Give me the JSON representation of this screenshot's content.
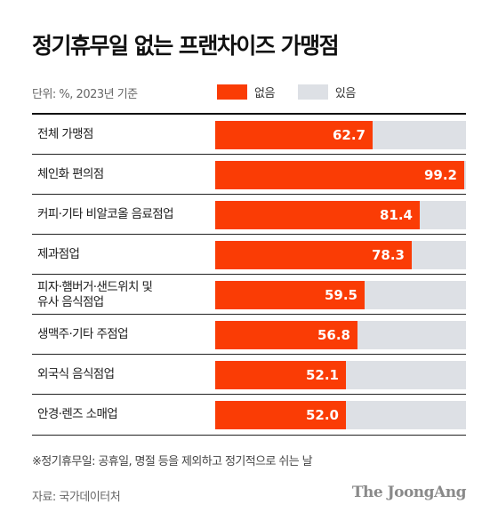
{
  "title": "정기휴무일 없는 프랜차이즈 가맹점",
  "unit_label": "단위: %, 2023년 기준",
  "legend": [
    {
      "label": "없음",
      "color": "#fa3c05"
    },
    {
      "label": "있음",
      "color": "#dde0e5"
    }
  ],
  "footnote": "※정기휴무일: 공휴일, 명절 등을 제외하고 정기적으로 쉬는 날",
  "source": "자료: 국가데이터처",
  "logo_text": "The JoongAng",
  "chart_data": {
    "type": "bar",
    "orientation": "horizontal",
    "stacked_percent": true,
    "categories": [
      [
        "전체 가맹점"
      ],
      [
        "체인화 편의점"
      ],
      [
        "커피·기타 비알코올 음료점업"
      ],
      [
        "제과점업"
      ],
      [
        "피자·햄버거·샌드위치 및",
        "유사 음식점업"
      ],
      [
        "생맥주·기타 주점업"
      ],
      [
        "외국식 음식점업"
      ],
      [
        "안경·렌즈 소매업"
      ]
    ],
    "series": [
      {
        "name": "없음",
        "values": [
          62.7,
          99.2,
          81.4,
          78.3,
          59.5,
          56.8,
          52.1,
          52.0
        ],
        "color": "#fa3c05"
      },
      {
        "name": "있음",
        "values": [
          37.3,
          0.8,
          18.6,
          21.7,
          40.5,
          43.2,
          47.9,
          48.0
        ],
        "color": "#dde0e5"
      }
    ],
    "value_labels": [
      "62.7",
      "99.2",
      "81.4",
      "78.3",
      "59.5",
      "56.8",
      "52.1",
      "52.0"
    ],
    "xlim": [
      0,
      100
    ],
    "legend_position": "top",
    "grid": false
  }
}
